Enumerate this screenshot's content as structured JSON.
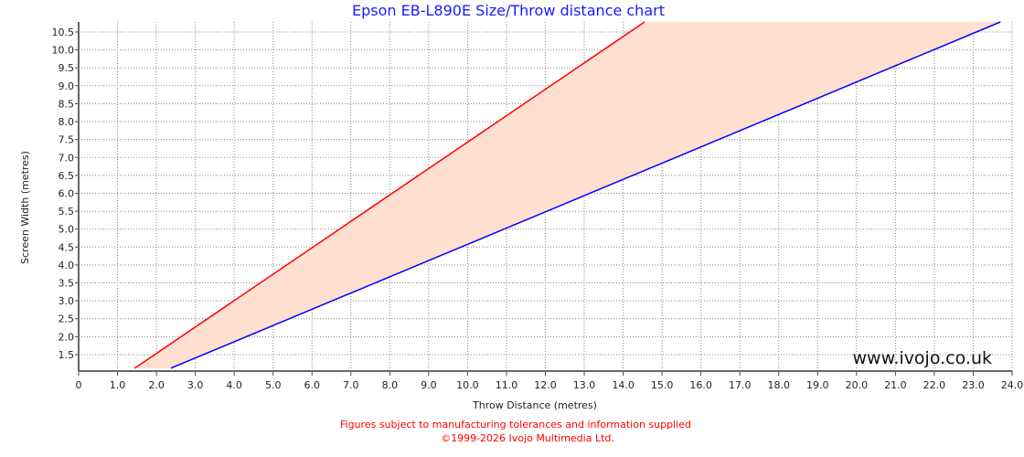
{
  "chart_data": {
    "type": "area",
    "title": "Epson EB-L890E Size/Throw distance chart",
    "xlabel": "Throw Distance (metres)",
    "ylabel": "Screen Width (metres)",
    "xlim": [
      0,
      24
    ],
    "ylim": [
      1.04,
      10.78
    ],
    "grid": true,
    "x_ticks": [
      "0",
      "1.0",
      "2.0",
      "3.0",
      "4.0",
      "5.0",
      "6.0",
      "7.0",
      "8.0",
      "9.0",
      "10.0",
      "11.0",
      "12.0",
      "13.0",
      "14.0",
      "15.0",
      "16.0",
      "17.0",
      "18.0",
      "19.0",
      "20.0",
      "21.0",
      "22.0",
      "23.0",
      "24.0"
    ],
    "y_ticks": [
      "1.5",
      "2.0",
      "2.5",
      "3.0",
      "3.5",
      "4.0",
      "4.5",
      "5.0",
      "5.5",
      "6.0",
      "6.5",
      "7.0",
      "7.5",
      "8.0",
      "8.5",
      "9.0",
      "9.5",
      "10.0",
      "10.5"
    ],
    "series": [
      {
        "color": "#ff0000",
        "points": [
          [
            1.44,
            1.12
          ],
          [
            14.55,
            10.78
          ]
        ]
      },
      {
        "color": "#0000ff",
        "points": [
          [
            2.37,
            1.12
          ],
          [
            23.7,
            10.78
          ]
        ]
      }
    ],
    "fill_color": "#ffdfcf",
    "watermark": "www.ivojo.co.uk",
    "footnote": "Figures subject to manufacturing tolerances and information supplied",
    "copyright": "©1999-2026 Ivojo Multimedia Ltd."
  }
}
